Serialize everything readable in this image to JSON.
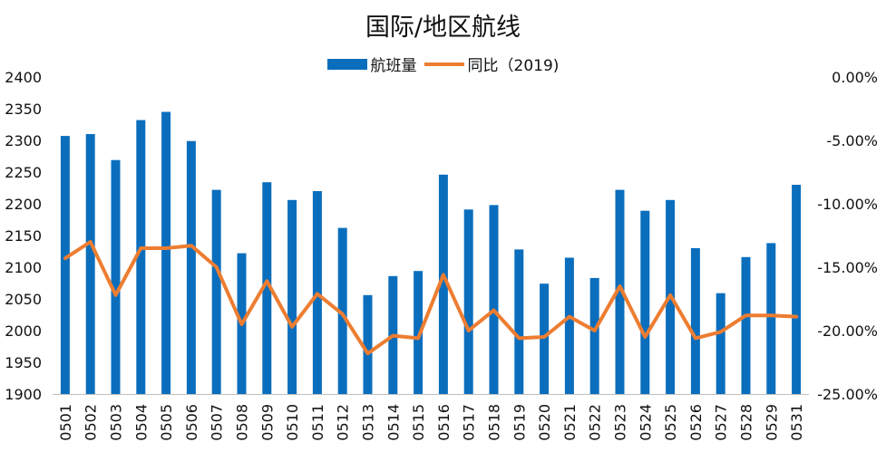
{
  "chart_data": {
    "type": "bar",
    "title": "国际/地区航线",
    "categories": [
      "0501",
      "0502",
      "0503",
      "0504",
      "0505",
      "0506",
      "0507",
      "0508",
      "0509",
      "0510",
      "0511",
      "0512",
      "0513",
      "0514",
      "0515",
      "0516",
      "0517",
      "0518",
      "0519",
      "0520",
      "0521",
      "0522",
      "0523",
      "0524",
      "0525",
      "0526",
      "0527",
      "0528",
      "0529",
      "0531"
    ],
    "series": [
      {
        "name": "航班量",
        "type": "bar",
        "axis": "left",
        "color": "#0a6ebd",
        "values": [
          2307,
          2310,
          2269,
          2332,
          2345,
          2299,
          2222,
          2122,
          2234,
          2206,
          2220,
          2162,
          2056,
          2086,
          2094,
          2246,
          2191,
          2198,
          2128,
          2074,
          2115,
          2083,
          2222,
          2189,
          2206,
          2130,
          2059,
          2116,
          2138,
          2230
        ]
      },
      {
        "name": "同比（2019)",
        "type": "line",
        "axis": "right",
        "color": "#ed7d31",
        "values": [
          -14.3,
          -13.0,
          -17.2,
          -13.5,
          -13.5,
          -13.3,
          -15.0,
          -19.5,
          -16.1,
          -19.7,
          -17.1,
          -18.7,
          -21.8,
          -20.4,
          -20.6,
          -15.6,
          -20.0,
          -18.4,
          -20.6,
          -20.5,
          -18.9,
          -20.0,
          -16.5,
          -20.5,
          -17.2,
          -20.6,
          -20.1,
          -18.8,
          -18.8,
          -18.9
        ]
      }
    ],
    "ylim_left": [
      1900,
      2400
    ],
    "yticks_left": [
      "2400",
      "2350",
      "2300",
      "2250",
      "2200",
      "2150",
      "2100",
      "2050",
      "2000",
      "1950",
      "1900"
    ],
    "ylim_right": [
      -25,
      0
    ],
    "yticks_right": [
      "0.00%",
      "-5.00%",
      "-10.00%",
      "-15.00%",
      "-20.00%",
      "-25.00%"
    ],
    "grid": false,
    "legend_position": "top"
  }
}
